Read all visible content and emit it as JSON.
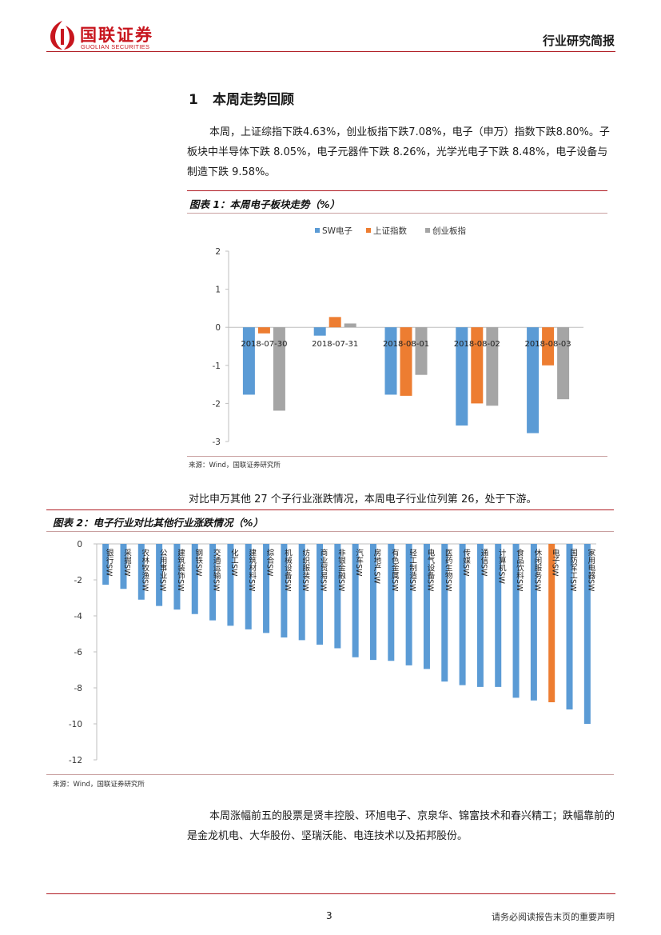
{
  "header": {
    "logo_text": "国联证券",
    "logo_en": "GUOLIAN SECURITIES",
    "doc_type": "行业研究简报"
  },
  "section": {
    "number": "1",
    "title": "本周走势回顾"
  },
  "paragraph1": "本周，上证综指下跌4.63%，创业板指下跌7.08%，电子（申万）指数下跌8.80%。子板块中半导体下跌 8.05%，电子元器件下跌 8.26%，光学光电子下跌 8.48%，电子设备与制造下跌 9.58%。",
  "figure1": {
    "caption": "图表 1：本周电子板块走势（%）",
    "source": "来源：Wind，国联证券研究所"
  },
  "paragraph2": "对比申万其他 27 个子行业涨跌情况，本周电子行业位列第 26，处于下游。",
  "figure2": {
    "caption": "图表 2：电子行业对比其他行业涨跌情况（%）",
    "source": "来源：Wind，国联证券研究所"
  },
  "paragraph3": "本周涨幅前五的股票是贤丰控股、环旭电子、京泉华、锦富技术和春兴精工；跌幅靠前的是金龙机电、大华股份、坚瑞沃能、电连技术以及拓邦股份。",
  "footer": {
    "page": "3",
    "note": "请务必阅读报告末页的重要声明"
  },
  "colors": {
    "brand": "#c8161e",
    "blue": "#5b9bd5",
    "orange": "#ed7d31",
    "gray": "#a5a5a5"
  },
  "chart_data": [
    {
      "type": "bar",
      "title": "本周电子板块走势（%）",
      "categories": [
        "2018-07-30",
        "2018-07-31",
        "2018-08-01",
        "2018-08-02",
        "2018-08-03"
      ],
      "series": [
        {
          "name": "SW电子",
          "values": [
            -1.77,
            -0.22,
            -1.77,
            -2.58,
            -2.78
          ]
        },
        {
          "name": "上证指数",
          "values": [
            -0.16,
            0.27,
            -1.8,
            -2.0,
            -1.0
          ]
        },
        {
          "name": "创业板指",
          "values": [
            -2.19,
            0.1,
            -1.25,
            -2.06,
            -1.89
          ]
        }
      ],
      "ylim": [
        -3,
        2
      ],
      "yticks": [
        "2",
        "1",
        "0",
        "-1",
        "-2",
        "-3"
      ],
      "legend": "top-center",
      "xlabel": "",
      "ylabel": ""
    },
    {
      "type": "bar",
      "title": "电子行业对比其他行业涨跌情况（%）",
      "categories": [
        "银行SW",
        "采掘SW",
        "农林牧渔SW",
        "公用事业SW",
        "建筑装饰SW",
        "钢铁SW",
        "交通运输SW",
        "化工SW",
        "建筑材料SW",
        "综合SW",
        "机械设备SW",
        "纺织服装SW",
        "商业贸易SW",
        "非银金融SW",
        "汽车SW",
        "房地产SW",
        "有色金属SW",
        "轻工制造SW",
        "电气设备SW",
        "医药生物SW",
        "传媒SW",
        "通信SW",
        "计算机SW",
        "食品饮料SW",
        "休闲服务SW",
        "电子SW",
        "国防军工SW",
        "家用电器SW"
      ],
      "values": [
        -2.27,
        -2.5,
        -3.1,
        -3.45,
        -3.65,
        -3.9,
        -4.25,
        -4.55,
        -4.75,
        -4.95,
        -5.2,
        -5.35,
        -5.6,
        -5.8,
        -6.3,
        -6.45,
        -6.5,
        -6.75,
        -6.95,
        -7.65,
        -7.85,
        -7.95,
        -7.95,
        -8.55,
        -8.7,
        -8.8,
        -9.2,
        -10.0
      ],
      "highlight": "电子SW",
      "ylim": [
        -12,
        0
      ],
      "yticks": [
        "0",
        "-2",
        "-4",
        "-6",
        "-8",
        "-10",
        "-12"
      ],
      "xlabel": "",
      "ylabel": ""
    }
  ]
}
